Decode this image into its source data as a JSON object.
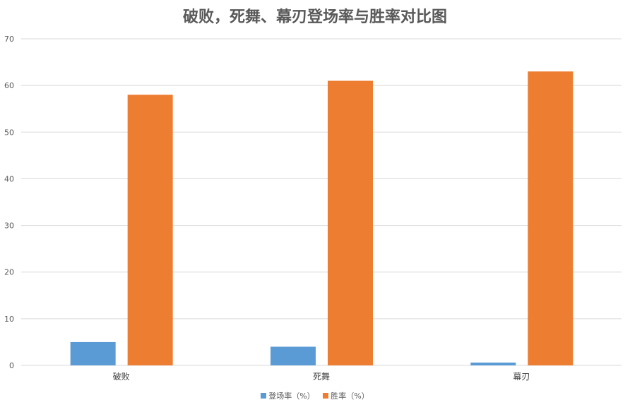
{
  "chart_data": {
    "type": "bar",
    "title": "破败，死舞、幕刃登场率与胜率对比图",
    "categories": [
      "破败",
      "死舞",
      "幕刃"
    ],
    "series": [
      {
        "name": "登场率（%）",
        "values": [
          5,
          4,
          0.6
        ],
        "color": "#5b9bd5"
      },
      {
        "name": "胜率（%）",
        "values": [
          58,
          61,
          63
        ],
        "color": "#ed7d31"
      }
    ],
    "ylim": [
      0,
      70
    ],
    "yticks": [
      "0",
      "10",
      "20",
      "30",
      "40",
      "50",
      "60",
      "70"
    ],
    "grid": true,
    "legend": "bottom"
  }
}
